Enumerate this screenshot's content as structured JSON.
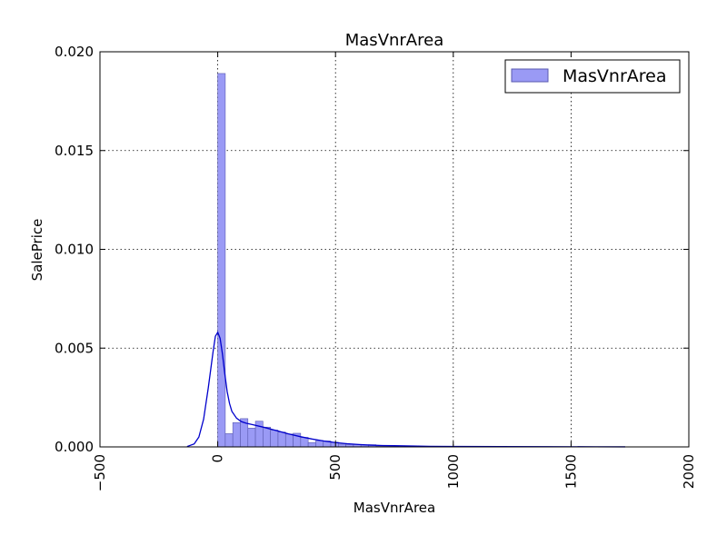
{
  "chart_data": {
    "type": "bar",
    "title": "MasVnrArea",
    "xlabel": "MasVnrArea",
    "ylabel": "SalePrice",
    "xlim": [
      -500,
      2000
    ],
    "ylim": [
      0,
      0.02
    ],
    "x_ticks": [
      "−500",
      "0",
      "500",
      "1000",
      "1500",
      "2000"
    ],
    "y_ticks": [
      "0.000",
      "0.005",
      "0.010",
      "0.015",
      "0.020"
    ],
    "grid": true,
    "legend": {
      "position": "top-right",
      "entries": [
        "MasVnrArea"
      ]
    },
    "colors": {
      "bar_fill": "#9a9af5",
      "bar_edge": "#5a5ab0",
      "kde_line": "#0000cc"
    },
    "bins": [
      {
        "x0": 0,
        "x1": 32,
        "value": 0.0189
      },
      {
        "x0": 32,
        "x1": 64,
        "value": 0.00067
      },
      {
        "x0": 64,
        "x1": 96,
        "value": 0.00123
      },
      {
        "x0": 96,
        "x1": 128,
        "value": 0.00143
      },
      {
        "x0": 128,
        "x1": 160,
        "value": 0.00095
      },
      {
        "x0": 160,
        "x1": 192,
        "value": 0.0013
      },
      {
        "x0": 192,
        "x1": 224,
        "value": 0.001
      },
      {
        "x0": 224,
        "x1": 256,
        "value": 0.00085
      },
      {
        "x0": 256,
        "x1": 288,
        "value": 0.00075
      },
      {
        "x0": 288,
        "x1": 320,
        "value": 0.00065
      },
      {
        "x0": 320,
        "x1": 352,
        "value": 0.00069
      },
      {
        "x0": 352,
        "x1": 384,
        "value": 0.00048
      },
      {
        "x0": 384,
        "x1": 416,
        "value": 0.00022
      },
      {
        "x0": 416,
        "x1": 448,
        "value": 0.00032
      },
      {
        "x0": 448,
        "x1": 480,
        "value": 0.0003
      },
      {
        "x0": 480,
        "x1": 512,
        "value": 0.00024
      },
      {
        "x0": 512,
        "x1": 544,
        "value": 0.00014
      },
      {
        "x0": 544,
        "x1": 576,
        "value": 0.00012
      },
      {
        "x0": 576,
        "x1": 608,
        "value": 0.00012
      },
      {
        "x0": 608,
        "x1": 640,
        "value": 0.0001
      },
      {
        "x0": 640,
        "x1": 672,
        "value": 0.00011
      },
      {
        "x0": 672,
        "x1": 704,
        "value": 4e-05
      },
      {
        "x0": 704,
        "x1": 736,
        "value": 3e-05
      },
      {
        "x0": 736,
        "x1": 768,
        "value": 3e-05
      },
      {
        "x0": 768,
        "x1": 800,
        "value": 2e-05
      },
      {
        "x0": 800,
        "x1": 832,
        "value": 2e-05
      },
      {
        "x0": 832,
        "x1": 864,
        "value": 2e-05
      },
      {
        "x0": 864,
        "x1": 896,
        "value": 1e-05
      },
      {
        "x0": 896,
        "x1": 928,
        "value": 1e-05
      },
      {
        "x0": 928,
        "x1": 960,
        "value": 1e-05
      },
      {
        "x0": 960,
        "x1": 992,
        "value": 1e-05
      },
      {
        "x0": 992,
        "x1": 1024,
        "value": 1e-05
      },
      {
        "x0": 1024,
        "x1": 1056,
        "value": 1e-05
      },
      {
        "x0": 1088,
        "x1": 1120,
        "value": 1e-05
      },
      {
        "x0": 1120,
        "x1": 1152,
        "value": 1e-05
      },
      {
        "x0": 1152,
        "x1": 1184,
        "value": 1e-05
      },
      {
        "x0": 1216,
        "x1": 1248,
        "value": 1e-05
      },
      {
        "x0": 1376,
        "x1": 1408,
        "value": 1e-05
      },
      {
        "x0": 1568,
        "x1": 1600,
        "value": 1e-05
      }
    ],
    "kde": {
      "x": [
        -130,
        -100,
        -80,
        -60,
        -40,
        -20,
        -10,
        0,
        10,
        20,
        30,
        40,
        50,
        60,
        80,
        100,
        120,
        150,
        200,
        250,
        300,
        350,
        400,
        450,
        500,
        550,
        600,
        650,
        700,
        750,
        800,
        900,
        1000,
        1200,
        1400,
        1600,
        1730
      ],
      "y": [
        2e-05,
        0.00015,
        0.0005,
        0.0014,
        0.003,
        0.0048,
        0.0056,
        0.0058,
        0.0055,
        0.0047,
        0.0037,
        0.0028,
        0.0022,
        0.0018,
        0.00145,
        0.00128,
        0.0012,
        0.00112,
        0.00098,
        0.00082,
        0.00066,
        0.00052,
        0.0004,
        0.0003,
        0.00022,
        0.00016,
        0.00012,
        9e-05,
        7e-05,
        6e-05,
        5e-05,
        3e-05,
        2e-05,
        1.5e-05,
        1e-05,
        6e-06,
        2e-06
      ]
    }
  }
}
